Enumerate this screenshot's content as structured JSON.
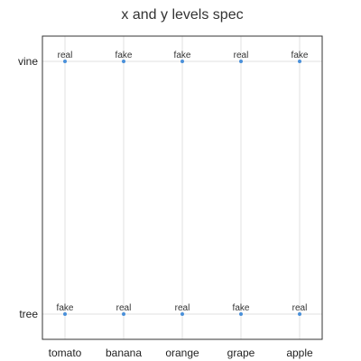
{
  "chart_data": {
    "type": "scatter",
    "title": "x and y levels spec",
    "xlabel": "",
    "ylabel": "",
    "x_categories": [
      "tomato",
      "banana",
      "orange",
      "grape",
      "apple"
    ],
    "y_categories": [
      "tree",
      "vine"
    ],
    "grid": true,
    "points": [
      {
        "x": "tomato",
        "y": "vine",
        "label": "real"
      },
      {
        "x": "banana",
        "y": "vine",
        "label": "fake"
      },
      {
        "x": "orange",
        "y": "vine",
        "label": "fake"
      },
      {
        "x": "grape",
        "y": "vine",
        "label": "real"
      },
      {
        "x": "apple",
        "y": "vine",
        "label": "fake"
      },
      {
        "x": "tomato",
        "y": "tree",
        "label": "fake"
      },
      {
        "x": "banana",
        "y": "tree",
        "label": "real"
      },
      {
        "x": "orange",
        "y": "tree",
        "label": "real"
      },
      {
        "x": "grape",
        "y": "tree",
        "label": "fake"
      },
      {
        "x": "apple",
        "y": "tree",
        "label": "real"
      }
    ],
    "colors": {
      "point": "#4a90d9"
    }
  }
}
